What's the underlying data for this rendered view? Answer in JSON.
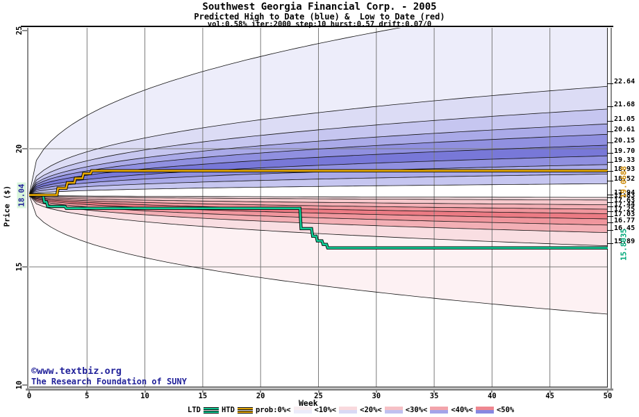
{
  "header": {
    "title": "Southwest Georgia Financial Corp. - 2005",
    "subtitle": "Predicted High to Date (blue) &  Low to Date (red)",
    "params": "vol:0.58% iter:2000 step:10 hurst:0.57 drift:0.07/0"
  },
  "axes": {
    "x_label": "Week",
    "y_label": "Price ($)",
    "x_ticks": [
      0,
      5,
      10,
      15,
      20,
      25,
      30,
      35,
      40,
      45,
      50
    ],
    "y_ticks": [
      25,
      20,
      15,
      10
    ],
    "x_range": [
      0,
      50
    ],
    "y_range": [
      10,
      25
    ]
  },
  "labels": {
    "start_price": "18.04",
    "htd_final": "19.0688",
    "ltd_final": "15.8035",
    "right_blue": [
      "22.64",
      "21.68",
      "21.05",
      "20.61",
      "20.15",
      "19.70",
      "19.33",
      "18.93",
      "18.52"
    ],
    "right_red": [
      "17.94",
      "17.83",
      "17.63",
      "17.44",
      "17.25",
      "17.03",
      "16.77",
      "16.45",
      "15.89"
    ]
  },
  "watermark": {
    "line1": "©www.textbiz.org",
    "line2": "The Research Foundation of SUNY"
  },
  "legend": {
    "ltd": "LTD",
    "htd": "HTD",
    "prob_prefix": "prob:0%<",
    "thresholds": [
      "<10%<",
      "<20%<",
      "<30%<",
      "<40%<",
      "<50%"
    ]
  },
  "colors": {
    "htd_line": "#e8aa00",
    "ltd_line": "#12cc96",
    "htd_label": "#cc8800",
    "ltd_label": "#00a878",
    "navy": "#22229a",
    "start_label_bg": "#d9f6dc",
    "grid": "#7a7a7a",
    "blue_bands": [
      "#ededfa",
      "#dcdcf5",
      "#c6c6f0",
      "#aaaae8",
      "#9090e0",
      "#7878d8",
      "#9090e0",
      "#aaaae8",
      "#c6c6f0"
    ],
    "red_bands": [
      "#f9dee2",
      "#f6c8cc",
      "#f3afb5",
      "#f0969d",
      "#ec7b84",
      "#f0969d",
      "#f3afb5",
      "#f9dee2",
      "#fdf1f3"
    ],
    "prob_swatches": [
      {
        "top": "#f8edf0",
        "bottom": "#ebebfa"
      },
      {
        "top": "#f9d9dd",
        "bottom": "#d9d9f5"
      },
      {
        "top": "#f6c0c5",
        "bottom": "#c0c0f0"
      },
      {
        "top": "#f3a4aa",
        "bottom": "#a4a4e9"
      },
      {
        "top": "#ef8790",
        "bottom": "#8787e1"
      }
    ]
  },
  "chart_data": {
    "type": "area",
    "title": "Southwest Georgia Financial Corp. - 2005",
    "subtitle": "Predicted High to Date (blue) &  Low to Date (red)",
    "xlabel": "Week",
    "ylabel": "Price ($)",
    "xlim": [
      0,
      50
    ],
    "ylim": [
      10,
      25
    ],
    "grid": true,
    "start_price": 18.04,
    "curve_exponent": 0.4,
    "high_contours_week50": [
      26.5,
      22.64,
      21.68,
      21.05,
      20.61,
      20.15,
      19.7,
      19.33,
      18.93,
      18.52
    ],
    "low_contours_week50": [
      17.94,
      17.83,
      17.63,
      17.44,
      17.25,
      17.03,
      16.77,
      16.45,
      15.89,
      13.0
    ],
    "htd_final": 19.0688,
    "ltd_final": 15.8035,
    "htd_series": [
      [
        0,
        18.04
      ],
      [
        2.4,
        18.04
      ],
      [
        2.5,
        18.33
      ],
      [
        3.2,
        18.33
      ],
      [
        3.3,
        18.56
      ],
      [
        3.9,
        18.56
      ],
      [
        4.0,
        18.75
      ],
      [
        4.6,
        18.75
      ],
      [
        4.7,
        18.95
      ],
      [
        5.3,
        18.95
      ],
      [
        5.4,
        19.0688
      ],
      [
        50,
        19.0688
      ]
    ],
    "ltd_series": [
      [
        0,
        18.04
      ],
      [
        1.2,
        18.04
      ],
      [
        1.3,
        17.75
      ],
      [
        1.5,
        17.75
      ],
      [
        1.6,
        17.56
      ],
      [
        3.1,
        17.56
      ],
      [
        3.2,
        17.48
      ],
      [
        23.4,
        17.48
      ],
      [
        23.5,
        16.62
      ],
      [
        24.4,
        16.62
      ],
      [
        24.5,
        16.3
      ],
      [
        24.8,
        16.3
      ],
      [
        24.9,
        16.1
      ],
      [
        25.3,
        16.1
      ],
      [
        25.4,
        15.95
      ],
      [
        25.7,
        15.95
      ],
      [
        25.8,
        15.8035
      ],
      [
        50,
        15.8035
      ]
    ]
  }
}
